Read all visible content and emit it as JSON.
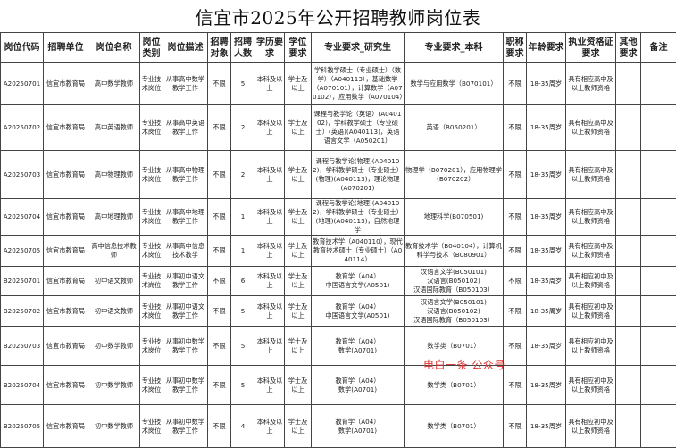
{
  "title": "信宜市2025年公开招聘教师岗位表",
  "headers": [
    "岗位代码",
    "招聘单位",
    "岗位名称",
    "岗位类别",
    "岗位描述",
    "招聘对象",
    "招聘人数",
    "学历要求",
    "学位要求",
    "专业要求_研究生",
    "专业要求_本科",
    "职称要求",
    "年龄要求",
    "执业资格证要求",
    "其他要求",
    "备注"
  ],
  "rows": [
    [
      "A20250701",
      "信宜市教育局",
      "高中数学教师",
      "专业技术岗位",
      "从事高中数学教学工作",
      "不限",
      "5",
      "本科及以上",
      "学士及以上",
      "学科教学硕士（专业硕士）（数学）（A040113），基础数学（A070101），计算数学（A070102），应用数学（A070104）",
      "数学与应用数学（B070101）",
      "不限",
      "18-35周岁",
      "具有相应高中及以上教师资格",
      "",
      ""
    ],
    [
      "A20250702",
      "信宜市教育局",
      "高中英语教师",
      "专业技术岗位",
      "从事高中英语教学工作",
      "不限",
      "2",
      "本科及以上",
      "学士及以上",
      "课程与教学论（英语）(A040102)，学科教学硕士（专业硕士）(英语)(A040113)，英语语言文学（A050201）",
      "英语（B050201）",
      "不限",
      "18-35周岁",
      "具有相应高中及以上教师资格",
      "",
      ""
    ],
    [
      "A20250703",
      "信宜市教育局",
      "高中物理教师",
      "专业技术岗位",
      "从事高中物理教学工作",
      "不限",
      "2",
      "本科及以上",
      "学士及以上",
      "课程与教学论(物理)(A040102)，学科教学硕士（专业硕士）(物理)(A040113)，理论物理(A070201)",
      "物理学（B070201），应用物理学（B070202）",
      "不限",
      "18-35周岁",
      "具有相应高中及以上教师资格",
      "",
      ""
    ],
    [
      "A20250704",
      "信宜市教育局",
      "高中地理教师",
      "专业技术岗位",
      "从事高中地理教学工作",
      "不限",
      "1",
      "本科及以上",
      "学士及以上",
      "课程与教学论(地理)(A040102)，学科教学硕士（专业硕士）(地理)(A040113)，自然地理学",
      "地理科学(B070501)",
      "不限",
      "18-35周岁",
      "具有相应高中及以上教师资格",
      "",
      ""
    ],
    [
      "A20250705",
      "信宜市教育局",
      "高中信息技术教师",
      "专业技术岗位",
      "从事高中信息技术教学",
      "不限",
      "1",
      "本科及以上",
      "学士及以上",
      "教育技术学（A040110），现代教育技术硕士（专业硕士）（A040114）",
      "教育技术学（B040104），计算机科学与技术（B080901）",
      "不限",
      "18-35周岁",
      "具有相应高中及以上教师资格",
      "",
      ""
    ],
    [
      "B20250701",
      "信宜市教育局",
      "初中语文教师",
      "专业技术岗位",
      "从事初中语文教学工作",
      "不限",
      "6",
      "本科及以上",
      "学士及以上",
      "教育学（A04）\n中国语言文学(A0501)",
      "汉语言文学(B050101)\n汉语言(B050102)\n汉语国际教育（B050103）",
      "不限",
      "18-35周岁",
      "具有相应初中及以上教师资格",
      "",
      ""
    ],
    [
      "B20250702",
      "信宜市教育局",
      "初中语文教师",
      "专业技术岗位",
      "从事初中语文教学工作",
      "不限",
      "5",
      "本科及以上",
      "学士及以上",
      "教育学（A04）\n中国语言文学(A0501)",
      "汉语言文学(B050101)\n汉语言(B050102)\n汉语国际教育（B050103）",
      "不限",
      "18-35周岁",
      "具有相应初中及以上教师资格",
      "",
      ""
    ],
    [
      "B20250703",
      "信宜市教育局",
      "初中数学教师",
      "专业技术岗位",
      "从事初中数学教学工作",
      "不限",
      "5",
      "本科及以上",
      "学士及以上",
      "教育学（A04）\n数学(A0701)",
      "数学类（B0701）",
      "不限",
      "18-35周岁",
      "具有相应初中及以上教师资格",
      "",
      ""
    ],
    [
      "B20250704",
      "信宜市教育局",
      "初中数学教师",
      "专业技术岗位",
      "从事初中数学教学工作",
      "不限",
      "5",
      "本科及以上",
      "学士及以上",
      "教育学（A04）\n数学(A0701)",
      "数学类（B0701）",
      "不限",
      "18-35周岁",
      "具有相应初中及以上教师资格",
      "",
      ""
    ],
    [
      "B20250705",
      "信宜市教育局",
      "初中数学教师",
      "专业技术岗位",
      "从事初中数学教学工作",
      "不限",
      "4",
      "本科及以上",
      "学士及以上",
      "教育学（A04）\n数学(A0701)",
      "数学类（B0701）",
      "不限",
      "18-35周岁",
      "具有相应初中及以上教师资格",
      "",
      ""
    ]
  ],
  "watermark": "电白一条 公众号"
}
